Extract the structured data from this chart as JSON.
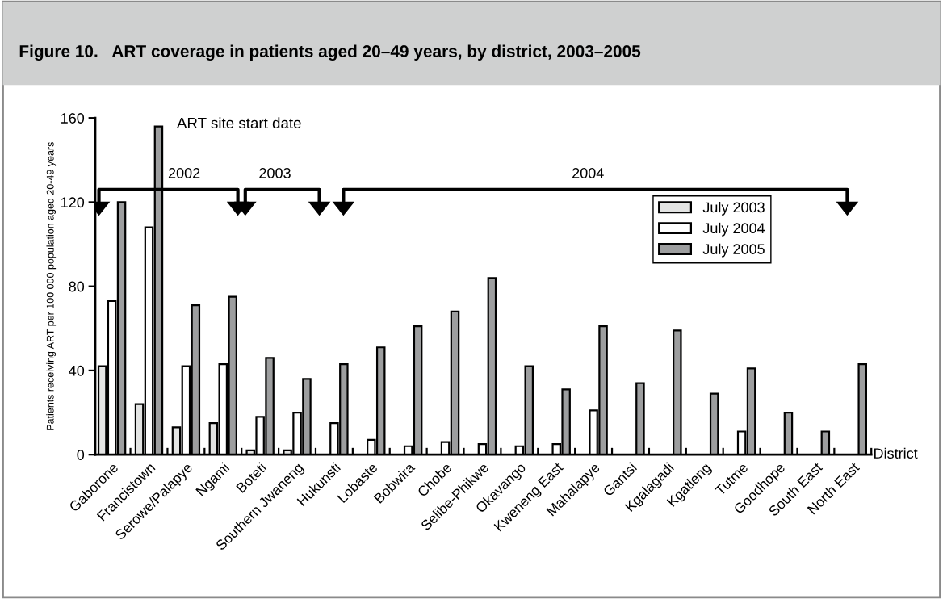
{
  "chart_data": {
    "type": "bar",
    "title": "Figure 10.   ART coverage in patients aged 20–49 years, by district, 2003–2005",
    "ylabel": "Patients receiving ART per 100 000 population aged 20-49 years",
    "xlabel": "District",
    "categories": [
      "Gaborone",
      "Francistown",
      "Serowe/Palapye",
      "Ngami",
      "Boteti",
      "Southern Jwaneng",
      "Hukunsti",
      "Lobaste",
      "Bobwira",
      "Chobe",
      "Selibe-Phikwe",
      "Okavango",
      "Kweneng East",
      "Mahalapye",
      "Gantsi",
      "Kgalagadi",
      "Kgatleng",
      "Tutme",
      "Goodhope",
      "South East",
      "North East"
    ],
    "series": [
      {
        "name": "July 2003",
        "color": "#e3e4e3",
        "values": [
          42,
          24,
          13,
          15,
          2,
          2,
          null,
          null,
          null,
          null,
          null,
          null,
          null,
          null,
          null,
          null,
          null,
          null,
          null,
          null,
          null
        ]
      },
      {
        "name": "July 2004",
        "color": "#ffffff",
        "values": [
          73,
          108,
          42,
          43,
          18,
          20,
          15,
          7,
          4,
          6,
          5,
          4,
          5,
          21,
          null,
          null,
          null,
          11,
          null,
          null,
          null
        ]
      },
      {
        "name": "July 2005",
        "color": "#9d9e9f",
        "values": [
          120,
          156,
          71,
          75,
          46,
          36,
          43,
          51,
          61,
          68,
          84,
          42,
          31,
          61,
          34,
          59,
          29,
          41,
          20,
          11,
          43
        ]
      }
    ],
    "ylim": [
      0,
      160
    ],
    "yticks": [
      0,
      40,
      80,
      120,
      160
    ],
    "grid": false,
    "legend": "top right",
    "annotations": [
      "ART site start date",
      "2002",
      "2003",
      "2004"
    ]
  }
}
